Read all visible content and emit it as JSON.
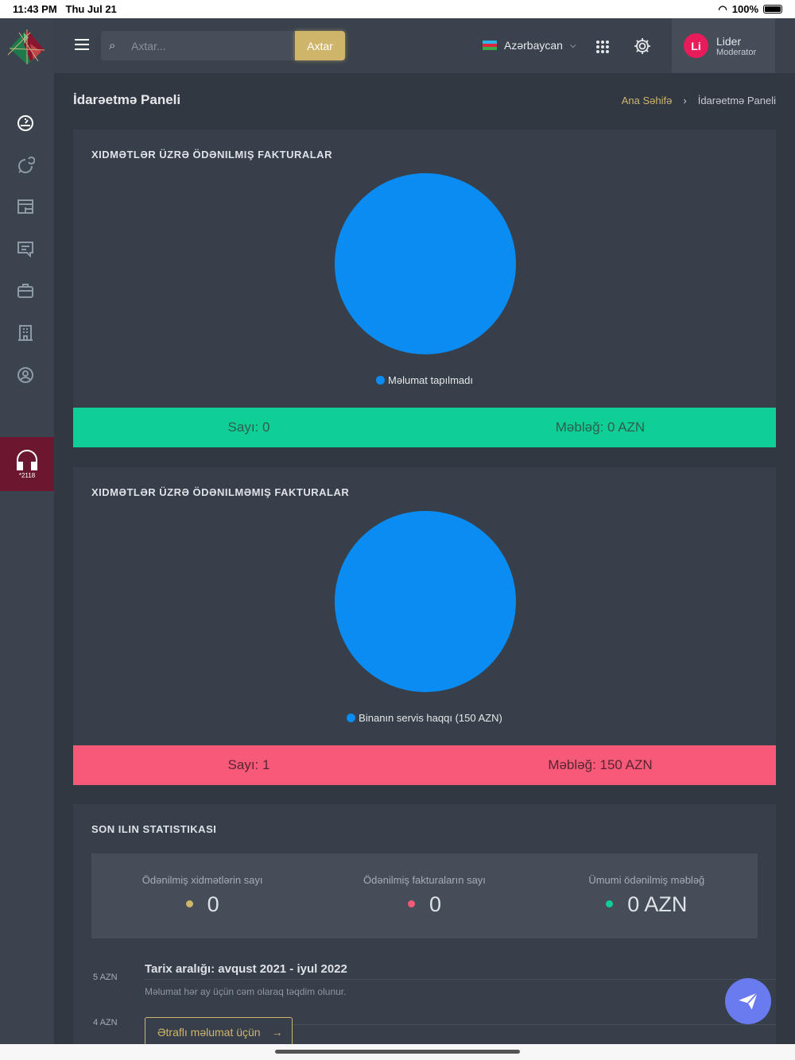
{
  "status": {
    "time": "11:43 PM",
    "date": "Thu Jul 21",
    "battery": "100%"
  },
  "header": {
    "search_placeholder": "Axtar...",
    "search_button": "Axtar",
    "language": "Azərbaycan",
    "user_initials": "Li",
    "user_name": "Lider",
    "user_role": "Moderator"
  },
  "sidebar": {
    "support_number": "*2118"
  },
  "page": {
    "title": "İdarəetmə Paneli",
    "breadcrumb": [
      "Ana Səhifə",
      "İdarəetmə Paneli"
    ]
  },
  "paid": {
    "title": "XIDMƏTLƏR ÜZRƏ ÖDƏNILMIŞ FAKTURALAR",
    "legend": "Məlumat tapılmadı",
    "count": "Sayı: 0",
    "amount": "Məbləğ: 0 AZN",
    "color": "#0fce96"
  },
  "unpaid": {
    "title": "XIDMƏTLƏR ÜZRƏ ÖDƏNILMƏMIŞ FAKTURALAR",
    "legend": "Binanın servis haqqı (150 AZN)",
    "count": "Sayı: 1",
    "amount": "Məbləğ: 150 AZN",
    "color": "#f65a78"
  },
  "chart_data": [
    {
      "type": "pie",
      "title": "XIDMƏTLƏR ÜZRƏ ÖDƏNILMIŞ FAKTURALAR",
      "slices": [
        {
          "label": "Məlumat tapılmadı",
          "value": 1
        }
      ]
    },
    {
      "type": "pie",
      "title": "XIDMƏTLƏR ÜZRƏ ÖDƏNILMƏMIŞ FAKTURALAR",
      "slices": [
        {
          "label": "Binanın servis haqqı (150 AZN)",
          "value": 150
        }
      ]
    }
  ],
  "yearly": {
    "title": "SON ILIN STATISTIKASI",
    "stats": [
      {
        "label": "Ödənilmiş xidmətlərin sayı",
        "value": "0",
        "color": "#cfb56a"
      },
      {
        "label": "Ödənilmiş fakturaların sayı",
        "value": "0",
        "color": "#f65a78"
      },
      {
        "label": "Ümumi ödənilmiş məbləğ",
        "value": "0 AZN",
        "color": "#0fce96"
      }
    ],
    "y_ticks": [
      "5 AZN",
      "4 AZN"
    ],
    "date_range": "Tarix aralığı: avqust 2021 - iyul 2022",
    "note": "Məlumat hər ay üçün cəm olaraq təqdim olunur.",
    "more_button": "Ətraflı məlumat üçün"
  }
}
